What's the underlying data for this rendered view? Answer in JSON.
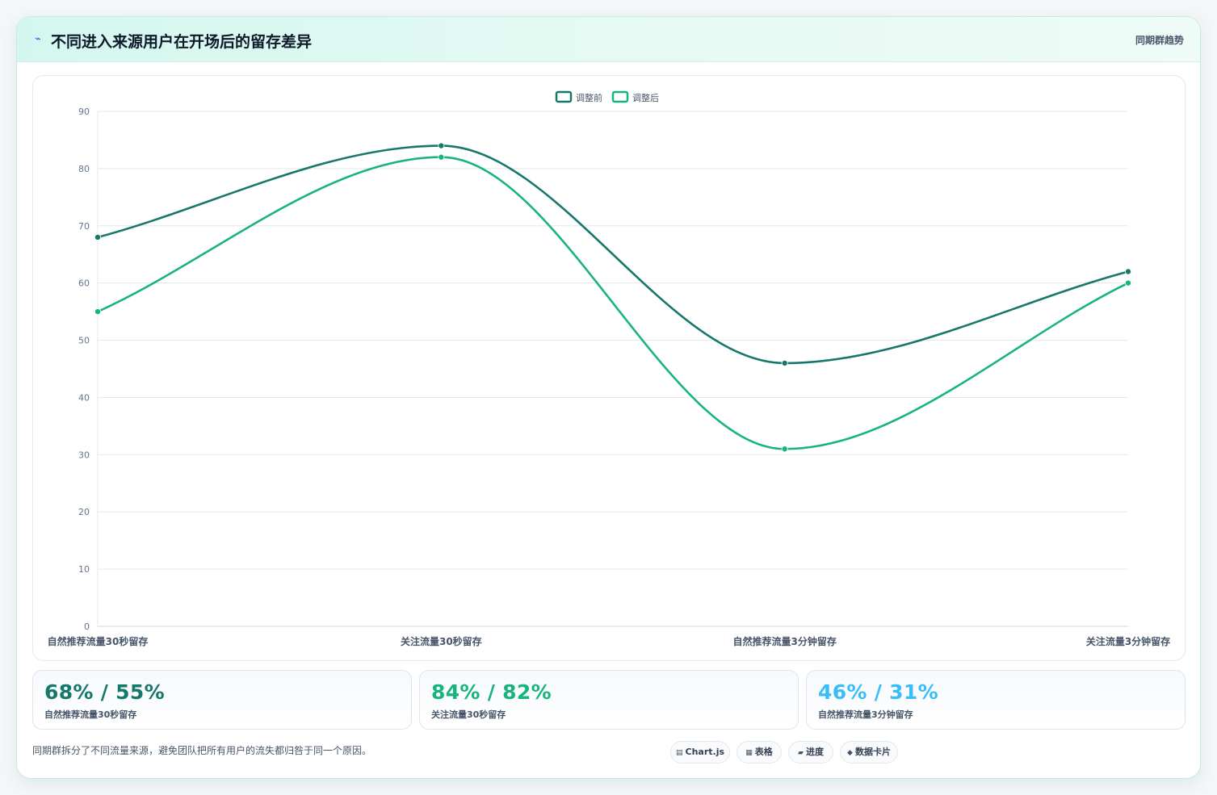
{
  "header": {
    "icon": "line-chart-icon",
    "title": "不同进入来源用户在开场后的留存差异",
    "right_link": "同期群趋势"
  },
  "chart_data": {
    "type": "line",
    "categories": [
      "自然推荐流量30秒留存",
      "关注流量30秒留存",
      "自然推荐流量3分钟留存",
      "关注流量3分钟留存"
    ],
    "series": [
      {
        "name": "调整前",
        "values": [
          68,
          84,
          46,
          62
        ],
        "color": "#16776b"
      },
      {
        "name": "调整后",
        "values": [
          55,
          82,
          31,
          60
        ],
        "color": "#19b47e"
      }
    ],
    "ylim": [
      0,
      90
    ],
    "yticks": [
      "0",
      "10",
      "20",
      "30",
      "40",
      "50",
      "60",
      "70",
      "80",
      "90"
    ],
    "legend": "top-center",
    "grid": true,
    "smooth": true
  },
  "stats": [
    {
      "value": "68% / 55%",
      "label": "自然推荐流量30秒留存",
      "color": "#16776b"
    },
    {
      "value": "84% / 82%",
      "label": "关注流量30秒留存",
      "color": "#19b47e"
    },
    {
      "value": "46% / 31%",
      "label": "自然推荐流量3分钟留存",
      "color": "#38bdf8"
    }
  ],
  "footer": {
    "note": "同期群拆分了不同流量来源，避免团队把所有用户的流失都归咎于同一个原因。",
    "tags": [
      {
        "icon": "▤",
        "label": "Chart.js"
      },
      {
        "icon": "▦",
        "label": "表格"
      },
      {
        "icon": "▰",
        "label": "进度"
      },
      {
        "icon": "◆",
        "label": "数据卡片"
      }
    ]
  }
}
